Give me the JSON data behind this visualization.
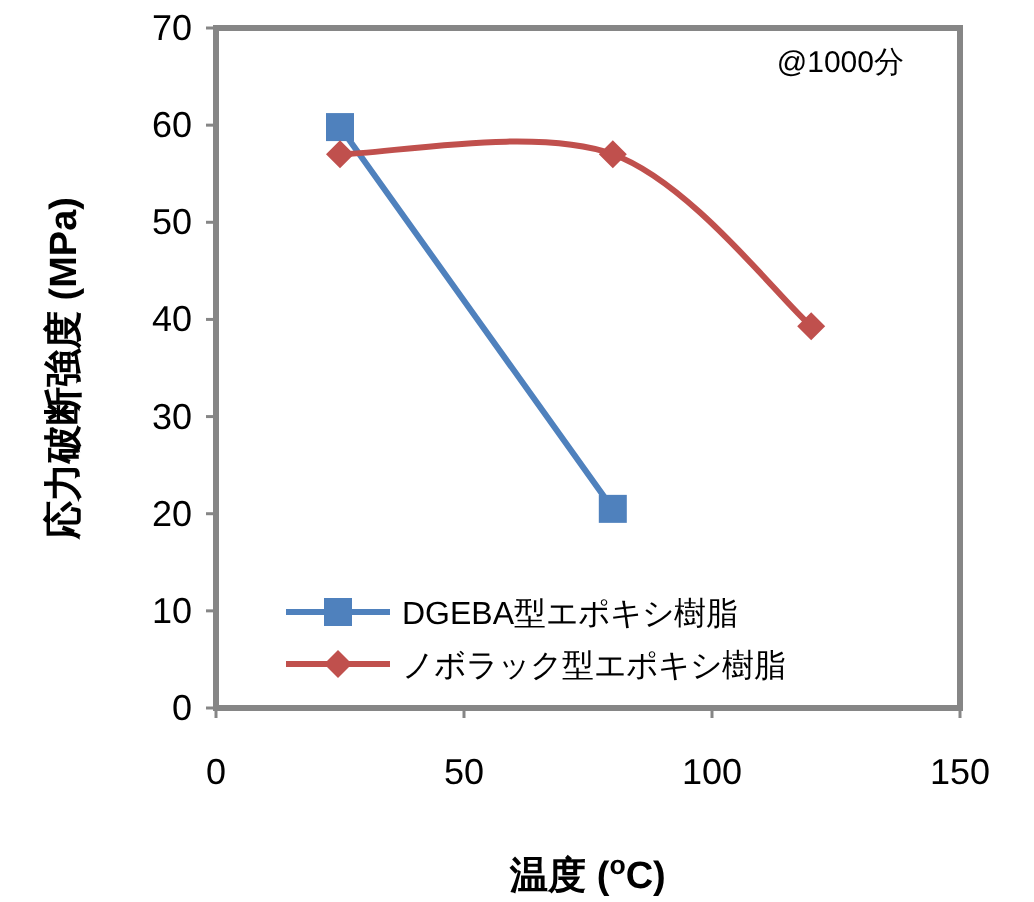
{
  "chart_data": {
    "type": "line",
    "xlabel": "温度 ($^{o}$C)",
    "ylabel": "応力破断強度 (MPa)",
    "annotations": [
      "@1000分"
    ],
    "xlim": [
      0,
      150
    ],
    "xticks": [
      0,
      50,
      100,
      150
    ],
    "ylim": [
      0,
      70
    ],
    "yticks": [
      0,
      10,
      20,
      30,
      40,
      50,
      60,
      70
    ],
    "grid": false,
    "legend": "bottom",
    "line_style": "solid",
    "series": [
      {
        "name": "DGEBA型エポキシ樹脂",
        "color": "#4f81bd",
        "marker": "square",
        "x": [
          25,
          80
        ],
        "values": [
          59.8,
          20.5
        ]
      },
      {
        "name": "ノボラック型エポキシ樹脂",
        "color": "#c0504d",
        "marker": "diamond",
        "x": [
          25,
          80,
          120
        ],
        "values": [
          57,
          57,
          39.3
        ]
      }
    ]
  }
}
